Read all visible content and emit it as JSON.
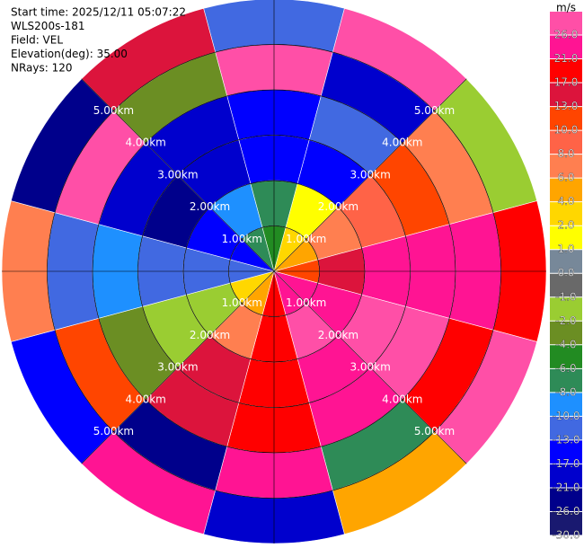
{
  "chart_data": {
    "type": "ppi",
    "annotations": [
      "Start time: 2025/12/11 05:07:22",
      "WLS200s-181",
      "Field: VEL",
      "Elevation(deg): 35.00",
      "NRays: 120"
    ],
    "ranges_km": [
      0.5,
      1.5,
      2.5,
      3.5,
      4.5,
      5.5
    ],
    "azimuths_deg": [
      0,
      30,
      60,
      90,
      120,
      150,
      180,
      210,
      240,
      270,
      300,
      330
    ],
    "values": [
      [
        -6,
        2,
        4,
        10,
        21,
        21,
        17,
        4,
        2,
        -13,
        -17,
        -8
      ],
      [
        -8,
        1,
        6,
        13,
        21,
        26,
        17,
        6,
        -2,
        -13,
        -17,
        -10
      ],
      [
        -17,
        -17,
        8,
        21,
        26,
        21,
        17,
        13,
        -2,
        -13,
        -26,
        -21
      ],
      [
        -17,
        -13,
        10,
        21,
        26,
        21,
        17,
        13,
        -4,
        -10,
        -21,
        -21
      ],
      [
        26,
        -21,
        6,
        21,
        17,
        -8,
        21,
        -26,
        10,
        -13,
        26,
        -4
      ],
      [
        -13,
        26,
        -2,
        17,
        26,
        4,
        -21,
        21,
        -17,
        6,
        -26,
        13
      ]
    ],
    "ring_labels": [
      {
        "value": 1,
        "label": "1.00km"
      },
      {
        "value": 2,
        "label": "2.00km"
      },
      {
        "value": 3,
        "label": "3.00km"
      },
      {
        "value": 4,
        "label": "4.00km"
      },
      {
        "value": 5,
        "label": "5.00km"
      }
    ],
    "rlim": [
      0,
      6
    ],
    "colorbar": {
      "label": "m/s",
      "ticks": [
        {
          "value": 26,
          "label": "26.0"
        },
        {
          "value": 21,
          "label": "21.0"
        },
        {
          "value": 17,
          "label": "17.0"
        },
        {
          "value": 13,
          "label": "13.0"
        },
        {
          "value": 10,
          "label": "10.0"
        },
        {
          "value": 8,
          "label": "8.0"
        },
        {
          "value": 6,
          "label": "6.0"
        },
        {
          "value": 4,
          "label": "4.0"
        },
        {
          "value": 2,
          "label": "2.0"
        },
        {
          "value": 1,
          "label": "1.0"
        },
        {
          "value": 0,
          "label": "0.0"
        },
        {
          "value": -1,
          "label": "-1.0"
        },
        {
          "value": -2,
          "label": "-2.0"
        },
        {
          "value": -4,
          "label": "-4.0"
        },
        {
          "value": -6,
          "label": "-6.0"
        },
        {
          "value": -8,
          "label": "-8.0"
        },
        {
          "value": -10,
          "label": "-10.0"
        },
        {
          "value": -13,
          "label": "-13.0"
        },
        {
          "value": -17,
          "label": "-17.0"
        },
        {
          "value": -21,
          "label": "-21.0"
        },
        {
          "value": -26,
          "label": "-26.0"
        },
        {
          "value": -30,
          "label": "-30.0"
        }
      ],
      "colors": [
        "#ff4fa7",
        "#ff1493",
        "#ff0000",
        "#dc143c",
        "#ff4500",
        "#ff6347",
        "#ff7f50",
        "#ffa500",
        "#ffd700",
        "#ffff00",
        "#778899",
        "#696969",
        "#9acd32",
        "#6b8e23",
        "#228b22",
        "#2e8b57",
        "#1e90ff",
        "#4169e1",
        "#0000ff",
        "#0000cd",
        "#00008b",
        "#191970"
      ]
    }
  }
}
